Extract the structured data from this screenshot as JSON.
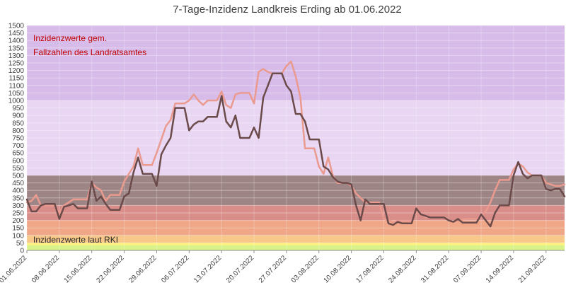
{
  "chart_data": {
    "type": "line",
    "title": "7-Tage-Inzidenz Landkreis Erding ab 01.06.2022",
    "xlabel": "",
    "ylabel": "",
    "ylim": [
      0,
      1500
    ],
    "y_ticks": [
      0,
      50,
      100,
      150,
      200,
      250,
      300,
      350,
      400,
      450,
      500,
      550,
      600,
      650,
      700,
      750,
      800,
      850,
      900,
      950,
      1000,
      1050,
      1100,
      1150,
      1200,
      1250,
      1300,
      1350,
      1400,
      1450,
      1500
    ],
    "x_start": "2022-06-01",
    "x_end": "2022-09-25",
    "x_ticks": [
      "01.06.2022",
      "08.06.2022",
      "15.06.2022",
      "22.06.2022",
      "29.06.2022",
      "06.07.2022",
      "13.07.2022",
      "20.07.2022",
      "27.07.2022",
      "03.08.2022",
      "10.08.2022",
      "17.08.2022",
      "24.08.2022",
      "31.08.2022",
      "07.09.2022",
      "14.09.2022",
      "21.09.2022"
    ],
    "grid": true,
    "legend": "none",
    "bands": [
      {
        "from": 0,
        "to": 35,
        "color": "#d9f28a"
      },
      {
        "from": 35,
        "to": 50,
        "color": "#fff27a"
      },
      {
        "from": 50,
        "to": 100,
        "color": "#f7c88a"
      },
      {
        "from": 100,
        "to": 200,
        "color": "#efa788"
      },
      {
        "from": 200,
        "to": 300,
        "color": "#d98e8a"
      },
      {
        "from": 300,
        "to": 500,
        "color": "#9e8585"
      },
      {
        "from": 500,
        "to": 1000,
        "color": "#e8d6f3"
      },
      {
        "from": 1000,
        "to": 1500,
        "color": "#d7bcea"
      }
    ],
    "annotations": [
      {
        "text": "Inzidenzwerte gem.",
        "color": "#c00000"
      },
      {
        "text": "Fallzahlen des Landratsamtes",
        "color": "#c00000"
      },
      {
        "text": "Inzidenzwerte laut RKI",
        "color": "#262626"
      }
    ],
    "series": [
      {
        "color": "#ea9a8e",
        "values": [
          [
            "2022-06-01",
            320
          ],
          [
            "2022-06-02",
            330
          ],
          [
            "2022-06-03",
            370
          ],
          [
            "2022-06-04",
            300
          ],
          [
            "2022-06-05",
            300
          ],
          [
            "2022-06-06",
            300
          ],
          [
            "2022-06-07",
            300
          ],
          [
            "2022-06-08",
            250
          ],
          [
            "2022-06-09",
            300
          ],
          [
            "2022-06-10",
            320
          ],
          [
            "2022-06-11",
            340
          ],
          [
            "2022-06-12",
            340
          ],
          [
            "2022-06-13",
            340
          ],
          [
            "2022-06-14",
            340
          ],
          [
            "2022-06-15",
            450
          ],
          [
            "2022-06-16",
            420
          ],
          [
            "2022-06-17",
            400
          ],
          [
            "2022-06-18",
            330
          ],
          [
            "2022-06-19",
            370
          ],
          [
            "2022-06-20",
            370
          ],
          [
            "2022-06-21",
            370
          ],
          [
            "2022-06-22",
            460
          ],
          [
            "2022-06-23",
            510
          ],
          [
            "2022-06-24",
            560
          ],
          [
            "2022-06-25",
            680
          ],
          [
            "2022-06-26",
            570
          ],
          [
            "2022-06-27",
            570
          ],
          [
            "2022-06-28",
            570
          ],
          [
            "2022-06-29",
            650
          ],
          [
            "2022-06-30",
            740
          ],
          [
            "2022-07-01",
            830
          ],
          [
            "2022-07-02",
            870
          ],
          [
            "2022-07-03",
            980
          ],
          [
            "2022-07-04",
            980
          ],
          [
            "2022-07-05",
            980
          ],
          [
            "2022-07-06",
            1000
          ],
          [
            "2022-07-07",
            1040
          ],
          [
            "2022-07-08",
            1000
          ],
          [
            "2022-07-09",
            970
          ],
          [
            "2022-07-10",
            1000
          ],
          [
            "2022-07-11",
            1000
          ],
          [
            "2022-07-12",
            1000
          ],
          [
            "2022-07-13",
            1060
          ],
          [
            "2022-07-14",
            970
          ],
          [
            "2022-07-15",
            950
          ],
          [
            "2022-07-16",
            1040
          ],
          [
            "2022-07-17",
            1050
          ],
          [
            "2022-07-18",
            1050
          ],
          [
            "2022-07-19",
            1050
          ],
          [
            "2022-07-20",
            980
          ],
          [
            "2022-07-21",
            1190
          ],
          [
            "2022-07-22",
            1210
          ],
          [
            "2022-07-23",
            1190
          ],
          [
            "2022-07-24",
            1180
          ],
          [
            "2022-07-25",
            1180
          ],
          [
            "2022-07-26",
            1180
          ],
          [
            "2022-07-27",
            1230
          ],
          [
            "2022-07-28",
            1260
          ],
          [
            "2022-07-29",
            1160
          ],
          [
            "2022-07-30",
            1020
          ],
          [
            "2022-07-31",
            680
          ],
          [
            "2022-08-01",
            680
          ],
          [
            "2022-08-02",
            680
          ],
          [
            "2022-08-03",
            560
          ],
          [
            "2022-08-04",
            510
          ],
          [
            "2022-08-05",
            620
          ],
          [
            "2022-08-06",
            500
          ],
          [
            "2022-08-07",
            450
          ],
          [
            "2022-08-08",
            450
          ],
          [
            "2022-08-09",
            450
          ],
          [
            "2022-08-10",
            430
          ],
          [
            "2022-08-11",
            380
          ],
          [
            "2022-08-12",
            350
          ],
          [
            "2022-08-13",
            320
          ],
          [
            "2022-08-14",
            320
          ],
          [
            "2022-08-15",
            320
          ],
          [
            "2022-08-16",
            320
          ],
          [
            "2022-08-17",
            210
          ],
          [
            "2022-08-18",
            200
          ],
          [
            "2022-08-19",
            190
          ],
          [
            "2022-08-20",
            195
          ],
          [
            "2022-08-21",
            195
          ],
          [
            "2022-08-22",
            195
          ],
          [
            "2022-08-23",
            195
          ],
          [
            "2022-08-24",
            260
          ],
          [
            "2022-08-25",
            240
          ],
          [
            "2022-08-26",
            220
          ],
          [
            "2022-08-27",
            225
          ],
          [
            "2022-08-28",
            225
          ],
          [
            "2022-08-29",
            225
          ],
          [
            "2022-08-30",
            225
          ],
          [
            "2022-08-31",
            200
          ],
          [
            "2022-09-01",
            190
          ],
          [
            "2022-09-02",
            200
          ],
          [
            "2022-09-03",
            205
          ],
          [
            "2022-09-04",
            210
          ],
          [
            "2022-09-05",
            210
          ],
          [
            "2022-09-06",
            210
          ],
          [
            "2022-09-07",
            230
          ],
          [
            "2022-09-08",
            260
          ],
          [
            "2022-09-09",
            320
          ],
          [
            "2022-09-10",
            400
          ],
          [
            "2022-09-11",
            470
          ],
          [
            "2022-09-12",
            470
          ],
          [
            "2022-09-13",
            470
          ],
          [
            "2022-09-14",
            540
          ],
          [
            "2022-09-15",
            580
          ],
          [
            "2022-09-16",
            560
          ],
          [
            "2022-09-17",
            520
          ],
          [
            "2022-09-18",
            500
          ],
          [
            "2022-09-19",
            500
          ],
          [
            "2022-09-20",
            500
          ],
          [
            "2022-09-21",
            450
          ],
          [
            "2022-09-22",
            440
          ],
          [
            "2022-09-23",
            430
          ],
          [
            "2022-09-24",
            430
          ],
          [
            "2022-09-25",
            440
          ]
        ]
      },
      {
        "color": "#6b4a4a",
        "values": [
          [
            "2022-06-01",
            340
          ],
          [
            "2022-06-02",
            260
          ],
          [
            "2022-06-03",
            260
          ],
          [
            "2022-06-04",
            300
          ],
          [
            "2022-06-05",
            310
          ],
          [
            "2022-06-06",
            310
          ],
          [
            "2022-06-07",
            310
          ],
          [
            "2022-06-08",
            210
          ],
          [
            "2022-06-09",
            290
          ],
          [
            "2022-06-10",
            300
          ],
          [
            "2022-06-11",
            310
          ],
          [
            "2022-06-12",
            280
          ],
          [
            "2022-06-13",
            280
          ],
          [
            "2022-06-14",
            280
          ],
          [
            "2022-06-15",
            460
          ],
          [
            "2022-06-16",
            330
          ],
          [
            "2022-06-17",
            360
          ],
          [
            "2022-06-18",
            310
          ],
          [
            "2022-06-19",
            270
          ],
          [
            "2022-06-20",
            270
          ],
          [
            "2022-06-21",
            270
          ],
          [
            "2022-06-22",
            360
          ],
          [
            "2022-06-23",
            380
          ],
          [
            "2022-06-24",
            520
          ],
          [
            "2022-06-25",
            620
          ],
          [
            "2022-06-26",
            510
          ],
          [
            "2022-06-27",
            510
          ],
          [
            "2022-06-28",
            510
          ],
          [
            "2022-06-29",
            430
          ],
          [
            "2022-06-30",
            640
          ],
          [
            "2022-07-01",
            700
          ],
          [
            "2022-07-02",
            750
          ],
          [
            "2022-07-03",
            950
          ],
          [
            "2022-07-04",
            950
          ],
          [
            "2022-07-05",
            950
          ],
          [
            "2022-07-06",
            800
          ],
          [
            "2022-07-07",
            840
          ],
          [
            "2022-07-08",
            860
          ],
          [
            "2022-07-09",
            860
          ],
          [
            "2022-07-10",
            890
          ],
          [
            "2022-07-11",
            890
          ],
          [
            "2022-07-12",
            890
          ],
          [
            "2022-07-13",
            1030
          ],
          [
            "2022-07-14",
            860
          ],
          [
            "2022-07-15",
            820
          ],
          [
            "2022-07-16",
            900
          ],
          [
            "2022-07-17",
            750
          ],
          [
            "2022-07-18",
            750
          ],
          [
            "2022-07-19",
            750
          ],
          [
            "2022-07-20",
            820
          ],
          [
            "2022-07-21",
            750
          ],
          [
            "2022-07-22",
            1020
          ],
          [
            "2022-07-23",
            1100
          ],
          [
            "2022-07-24",
            1180
          ],
          [
            "2022-07-25",
            1180
          ],
          [
            "2022-07-26",
            1180
          ],
          [
            "2022-07-27",
            1100
          ],
          [
            "2022-07-28",
            1060
          ],
          [
            "2022-07-29",
            910
          ],
          [
            "2022-07-30",
            910
          ],
          [
            "2022-07-31",
            860
          ],
          [
            "2022-08-01",
            740
          ],
          [
            "2022-08-02",
            740
          ],
          [
            "2022-08-03",
            740
          ],
          [
            "2022-08-04",
            560
          ],
          [
            "2022-08-05",
            540
          ],
          [
            "2022-08-06",
            490
          ],
          [
            "2022-08-07",
            460
          ],
          [
            "2022-08-08",
            450
          ],
          [
            "2022-08-09",
            450
          ],
          [
            "2022-08-10",
            440
          ],
          [
            "2022-08-11",
            300
          ],
          [
            "2022-08-12",
            200
          ],
          [
            "2022-08-13",
            340
          ],
          [
            "2022-08-14",
            310
          ],
          [
            "2022-08-15",
            310
          ],
          [
            "2022-08-16",
            310
          ],
          [
            "2022-08-17",
            310
          ],
          [
            "2022-08-18",
            180
          ],
          [
            "2022-08-19",
            170
          ],
          [
            "2022-08-20",
            190
          ],
          [
            "2022-08-21",
            180
          ],
          [
            "2022-08-22",
            180
          ],
          [
            "2022-08-23",
            180
          ],
          [
            "2022-08-24",
            280
          ],
          [
            "2022-08-25",
            240
          ],
          [
            "2022-08-26",
            230
          ],
          [
            "2022-08-27",
            220
          ],
          [
            "2022-08-28",
            220
          ],
          [
            "2022-08-29",
            220
          ],
          [
            "2022-08-30",
            220
          ],
          [
            "2022-08-31",
            200
          ],
          [
            "2022-09-01",
            190
          ],
          [
            "2022-09-02",
            210
          ],
          [
            "2022-09-03",
            185
          ],
          [
            "2022-09-04",
            185
          ],
          [
            "2022-09-05",
            185
          ],
          [
            "2022-09-06",
            185
          ],
          [
            "2022-09-07",
            240
          ],
          [
            "2022-09-08",
            200
          ],
          [
            "2022-09-09",
            160
          ],
          [
            "2022-09-10",
            250
          ],
          [
            "2022-09-11",
            300
          ],
          [
            "2022-09-12",
            300
          ],
          [
            "2022-09-13",
            300
          ],
          [
            "2022-09-14",
            500
          ],
          [
            "2022-09-15",
            590
          ],
          [
            "2022-09-16",
            510
          ],
          [
            "2022-09-17",
            480
          ],
          [
            "2022-09-18",
            500
          ],
          [
            "2022-09-19",
            500
          ],
          [
            "2022-09-20",
            500
          ],
          [
            "2022-09-21",
            410
          ],
          [
            "2022-09-22",
            400
          ],
          [
            "2022-09-23",
            410
          ],
          [
            "2022-09-24",
            410
          ],
          [
            "2022-09-25",
            360
          ]
        ]
      }
    ]
  }
}
